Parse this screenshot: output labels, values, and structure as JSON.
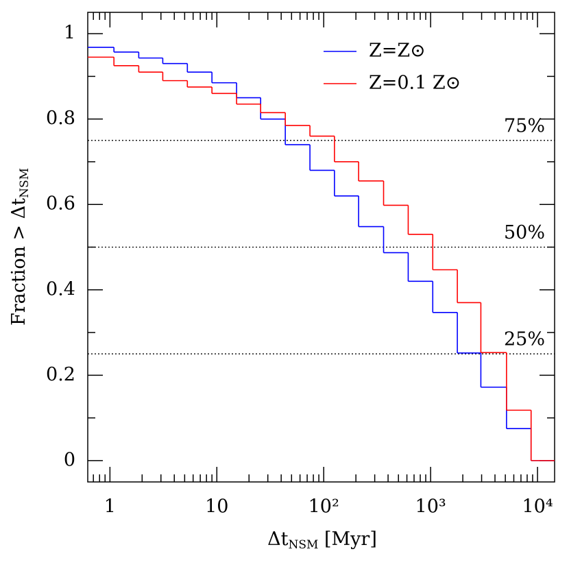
{
  "chart_data": {
    "type": "step",
    "xlabel": {
      "main": "Δt",
      "sub": "NSM",
      "rest": " [Myr]"
    },
    "ylabel": {
      "main": "Fraction > Δt",
      "sub": "NSM"
    },
    "x": [
      0.62,
      1.09,
      1.86,
      3.12,
      5.3,
      9.0,
      15.3,
      25.7,
      43.7,
      74.3,
      126,
      212,
      363,
      617,
      1047,
      1778,
      2951,
      5129,
      8710
    ],
    "series": [
      {
        "name": "Z=Z⊙",
        "color": "#0000ff",
        "values": [
          0.968,
          0.957,
          0.943,
          0.93,
          0.91,
          0.885,
          0.85,
          0.8,
          0.74,
          0.68,
          0.62,
          0.548,
          0.487,
          0.42,
          0.347,
          0.252,
          0.172,
          0.075,
          0
        ]
      },
      {
        "name": "Z=0.1  Z⊙",
        "color": "#ff0000",
        "values": [
          0.945,
          0.925,
          0.91,
          0.89,
          0.875,
          0.86,
          0.835,
          0.815,
          0.785,
          0.76,
          0.7,
          0.655,
          0.598,
          0.53,
          0.447,
          0.37,
          0.253,
          0.118,
          0
        ]
      }
    ],
    "xscale": "log",
    "xlim": [
      0.62,
      14450
    ],
    "xticks": [
      1,
      10,
      {
        "value": 100,
        "label": "10²"
      },
      {
        "value": 1000,
        "label": "10³"
      },
      {
        "value": 10000,
        "label": "10⁴"
      }
    ],
    "ylim": [
      -0.05,
      1.05
    ],
    "yticks": [
      0,
      0.2,
      0.4,
      0.6,
      0.8,
      1
    ],
    "hlines": [
      {
        "value": 0.75,
        "label": "75%"
      },
      {
        "value": 0.5,
        "label": "50%"
      },
      {
        "value": 0.25,
        "label": "25%"
      }
    ],
    "legend": "upper right"
  }
}
